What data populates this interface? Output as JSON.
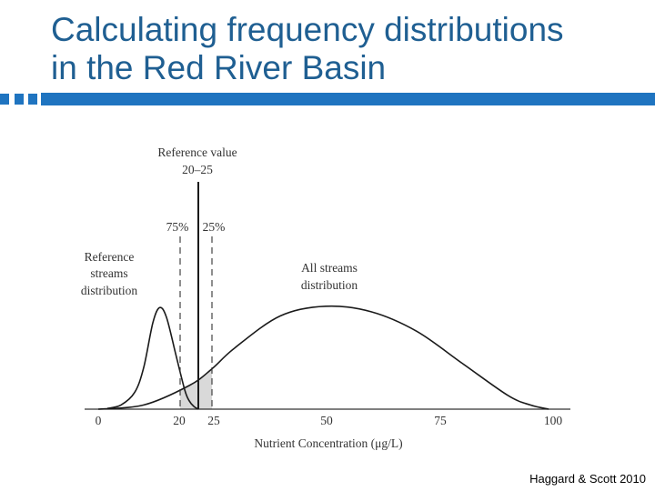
{
  "slide": {
    "title_lines": [
      "Calculating frequency distributions",
      "in the Red River Basin"
    ],
    "citation": "Haggard & Scott 2010",
    "accent_color": "#1f74c0",
    "title_color": "#1f5f92"
  },
  "figure": {
    "reference_label_lines": [
      "Reference value",
      "20–25"
    ],
    "pct_left": "75%",
    "pct_right": "25%",
    "reference_streams_lines": [
      "Reference",
      "streams",
      "distribution"
    ],
    "all_streams_lines": [
      "All streams",
      "distribution"
    ],
    "x_ticks": [
      "0",
      "20",
      "25",
      "50",
      "75",
      "100"
    ],
    "x_label": "Nutrient Concentration (μg/L)",
    "shading_color": "#d9d9d9"
  },
  "chart_data": {
    "type": "line",
    "x_range": [
      0,
      100
    ],
    "x_ticks": [
      0,
      20,
      25,
      50,
      75,
      100
    ],
    "xlabel": "Nutrient Concentration (μg/L)",
    "series": [
      {
        "name": "Reference streams distribution",
        "x": [
          2,
          5,
          8,
          10,
          12,
          13.5,
          15,
          17,
          19,
          20,
          21,
          22
        ],
        "y": [
          0.5,
          3,
          12,
          30,
          62,
          73,
          66,
          40,
          14,
          6,
          2,
          0
        ]
      },
      {
        "name": "All streams distribution",
        "x": [
          0,
          10,
          20,
          25,
          30,
          40,
          50,
          60,
          70,
          80,
          90,
          95,
          99
        ],
        "y": [
          0,
          3,
          17,
          29,
          44,
          67,
          74,
          70,
          56,
          33,
          10,
          3,
          0
        ]
      }
    ],
    "reference_value_range": [
      20,
      25
    ],
    "reference_value_line": 22,
    "percentile_lines": [
      {
        "label": "75%",
        "x": 18
      },
      {
        "label": "25%",
        "x": 25
      }
    ],
    "shaded_region": {
      "x_from": 18,
      "x_to": 25
    }
  }
}
